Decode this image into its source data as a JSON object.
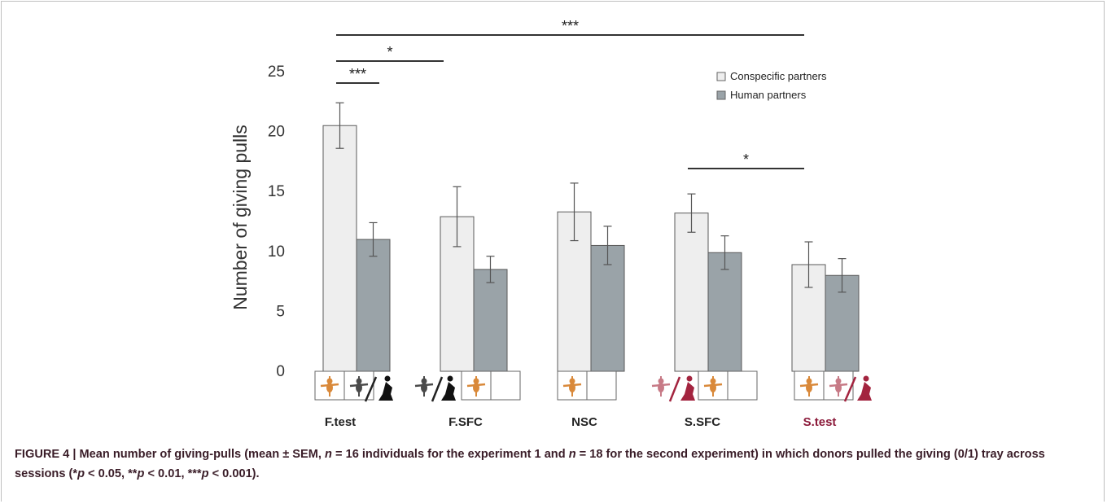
{
  "chart_data": {
    "type": "bar",
    "ylabel": "Number of giving pulls",
    "ylim": [
      0,
      25
    ],
    "yticks": [
      0,
      5,
      10,
      15,
      20,
      25
    ],
    "categories": [
      "F.test",
      "F.SFC",
      "NSC",
      "S.SFC",
      "S.test"
    ],
    "category_colors": [
      "#222222",
      "#222222",
      "#222222",
      "#222222",
      "#8b1a3a"
    ],
    "series": [
      {
        "name": "Conspecific partners",
        "values": [
          20.5,
          12.9,
          13.3,
          13.2,
          8.9
        ],
        "sem": [
          1.9,
          2.5,
          2.4,
          1.6,
          1.9
        ],
        "color": "#eeeeee"
      },
      {
        "name": "Human partners",
        "values": [
          11.0,
          8.5,
          10.5,
          9.9,
          8.0
        ],
        "sem": [
          1.4,
          1.1,
          1.6,
          1.4,
          1.4
        ],
        "color": "#9aa3a8"
      }
    ],
    "legend": "top-right",
    "grid": false,
    "significance": [
      {
        "label": "***",
        "from": "F.test conspecific",
        "to": "F.test human"
      },
      {
        "label": "*",
        "from": "F.test",
        "to": "F.SFC"
      },
      {
        "label": "***",
        "from": "F.test",
        "to": "S.test"
      },
      {
        "label": "*",
        "from": "S.SFC",
        "to": "S.test"
      }
    ]
  },
  "caption": {
    "prefix": "FIGURE 4 | Mean number of giving-pulls (mean ± SEM, ",
    "n": "n",
    "mid1": " = 16 individuals for the experiment 1 and ",
    "mid2": " = 18 for the second experiment) in which donors pulled the giving (0/1) tray across sessions (*",
    "p": "p",
    "p1": " < 0.05, **",
    "p2": " < 0.01, ***",
    "p3": " < 0.001)."
  }
}
